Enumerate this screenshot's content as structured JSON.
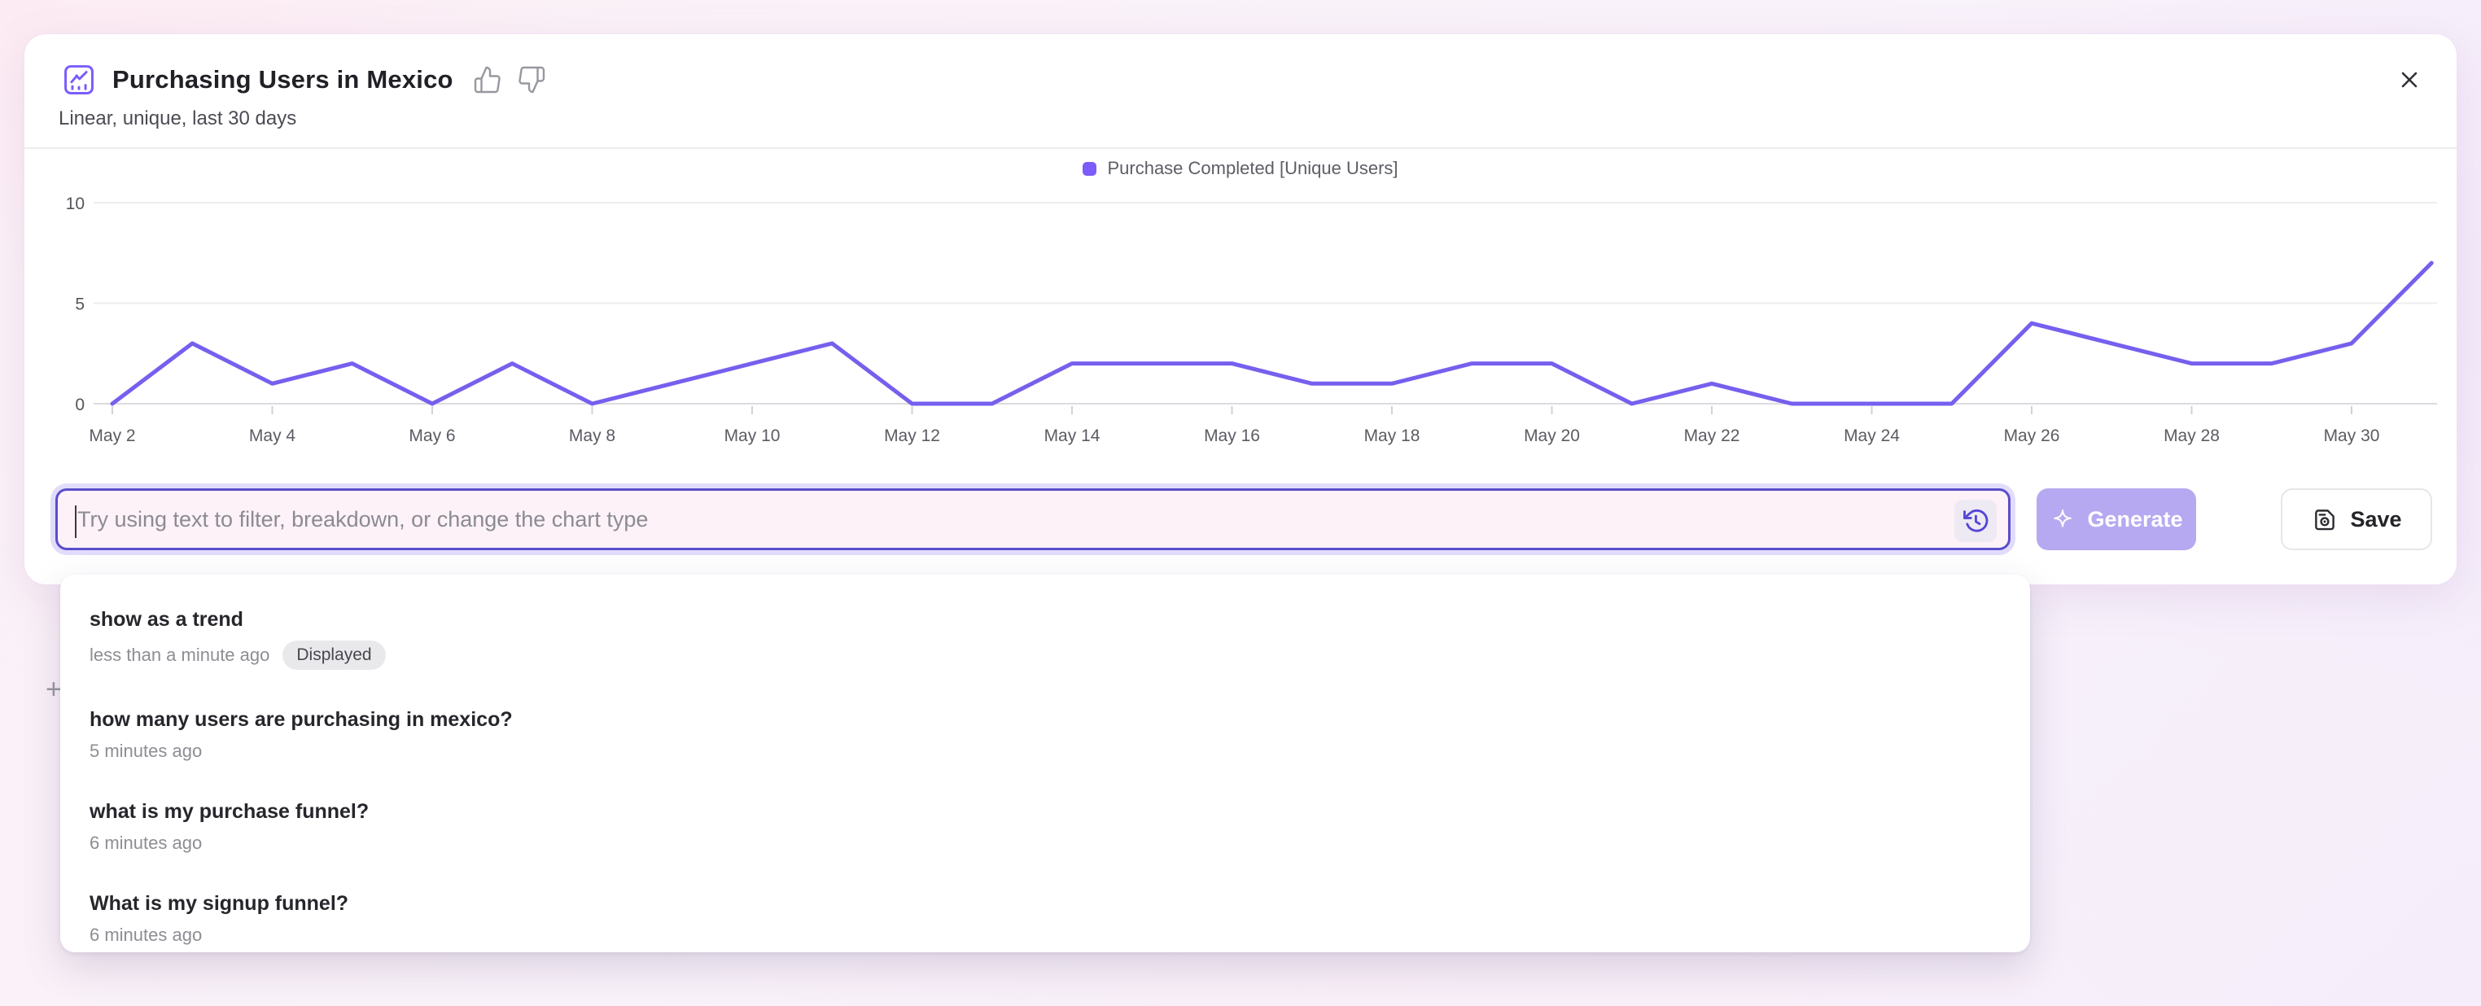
{
  "header": {
    "title": "Purchasing Users in Mexico",
    "subtitle": "Linear, unique, last 30 days"
  },
  "legend": {
    "label": "Purchase Completed [Unique Users]",
    "color": "#7c5cfa"
  },
  "chart_data": {
    "type": "line",
    "title": "Purchasing Users in Mexico",
    "x": [
      "May 2",
      "May 3",
      "May 4",
      "May 5",
      "May 6",
      "May 7",
      "May 8",
      "May 9",
      "May 10",
      "May 11",
      "May 12",
      "May 13",
      "May 14",
      "May 15",
      "May 16",
      "May 17",
      "May 18",
      "May 19",
      "May 20",
      "May 21",
      "May 22",
      "May 23",
      "May 24",
      "May 25",
      "May 26",
      "May 27",
      "May 28",
      "May 29",
      "May 30",
      "May 31"
    ],
    "series": [
      {
        "name": "Purchase Completed [Unique Users]",
        "values": [
          0,
          3,
          1,
          2,
          0,
          2,
          0,
          1,
          2,
          3,
          0,
          0,
          2,
          2,
          2,
          1,
          1,
          2,
          2,
          0,
          1,
          0,
          0,
          0,
          4,
          3,
          2,
          2,
          3,
          7
        ]
      }
    ],
    "ylim": [
      0,
      10
    ],
    "yticks": [
      0,
      5,
      10
    ],
    "xtick_every": 2,
    "grid": true,
    "legend_position": "top-center",
    "line_color": "#7560ee",
    "xlabel": "",
    "ylabel": ""
  },
  "input": {
    "placeholder": "Try using text to filter, breakdown, or change the chart type"
  },
  "actions": {
    "generate_label": "Generate",
    "save_label": "Save"
  },
  "history": {
    "items": [
      {
        "title": "show as a trend",
        "time": "less than a minute ago",
        "badge": "Displayed"
      },
      {
        "title": "how many users are purchasing in mexico?",
        "time": "5 minutes ago"
      },
      {
        "title": "what is my purchase funnel?",
        "time": "6 minutes ago"
      },
      {
        "title": "What is my signup funnel?",
        "time": "6 minutes ago"
      }
    ]
  },
  "misc": {
    "plus_glyph": "+"
  },
  "colors": {
    "accent_purple": "#7c5cfa",
    "line_purple": "#7560ee",
    "input_border": "#5b4ecb",
    "generate_bg": "#b6a9f1",
    "badge_bg": "#e9e9ec"
  }
}
